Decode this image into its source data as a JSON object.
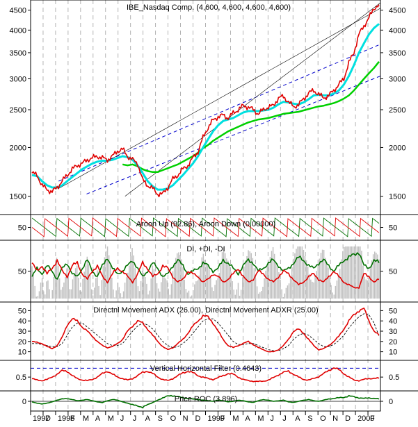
{
  "chart_data": {
    "type": "line",
    "x_axis": {
      "labels": [
        "1997",
        "D",
        "1998",
        "F",
        "M",
        "A",
        "M",
        "J",
        "J",
        "A",
        "S",
        "O",
        "N",
        "D",
        "1999",
        "F",
        "M",
        "A",
        "M",
        "J",
        "J",
        "A",
        "S",
        "O",
        "N",
        "D",
        "2000",
        "F"
      ],
      "range": [
        "1997-10",
        "2000-02"
      ],
      "grid": true
    },
    "panels": [
      {
        "id": "price",
        "title": "IBE_Nasdaq Comp. (4,600, 4,600, 4,600, 4,600)",
        "scale": "log",
        "ylim": [
          1380,
          4700
        ],
        "ticks": [
          1500,
          2000,
          2500,
          3000,
          3500,
          4000,
          4500
        ],
        "tick_labels": [
          "1500",
          "2000",
          "2500",
          "3000",
          "3500",
          "4000",
          "4500"
        ],
        "series": [
          {
            "color": "#e00000",
            "values": [
              1720,
              1700,
              1600,
              1560,
              1540,
              1580,
              1640,
              1700,
              1760,
              1800,
              1820,
              1860,
              1880,
              1900,
              1880,
              1860,
              1900,
              1960,
              1980,
              1900,
              1860,
              1820,
              1650,
              1600,
              1570,
              1520,
              1520,
              1580,
              1660,
              1700,
              1760,
              1800,
              1880,
              1950,
              2120,
              2250,
              2350,
              2400,
              2420,
              2380,
              2450,
              2500,
              2560,
              2540,
              2500,
              2440,
              2500,
              2540,
              2560,
              2680,
              2700,
              2620,
              2540,
              2580,
              2660,
              2760,
              2800,
              2740,
              2680,
              2720,
              2800,
              2900,
              3000,
              3300,
              3500,
              3900,
              4100,
              4300,
              4550,
              4650
            ]
          },
          {
            "color": "#00e0e0",
            "values": [
              1700,
              1690,
              1640,
              1600,
              1580,
              1580,
              1600,
              1640,
              1680,
              1720,
              1760,
              1790,
              1820,
              1840,
              1850,
              1850,
              1860,
              1880,
              1900,
              1890,
              1860,
              1800,
              1720,
              1640,
              1590,
              1560,
              1560,
              1570,
              1600,
              1650,
              1700,
              1760,
              1820,
              1900,
              2000,
              2100,
              2200,
              2280,
              2340,
              2360,
              2380,
              2420,
              2460,
              2480,
              2480,
              2480,
              2490,
              2500,
              2530,
              2580,
              2620,
              2610,
              2590,
              2580,
              2610,
              2660,
              2720,
              2730,
              2720,
              2720,
              2750,
              2800,
              2900,
              3050,
              3250,
              3500,
              3700,
              3900,
              4050,
              4150
            ]
          },
          {
            "color": "#00d000",
            "values": [
              null,
              null,
              null,
              null,
              null,
              null,
              null,
              null,
              null,
              null,
              null,
              null,
              null,
              null,
              null,
              null,
              null,
              null,
              1810,
              1800,
              1810,
              1790,
              1760,
              1740,
              1730,
              1730,
              1750,
              1770,
              1790,
              1810,
              1840,
              1870,
              1900,
              1940,
              1990,
              2030,
              2080,
              2120,
              2160,
              2200,
              2230,
              2260,
              2290,
              2320,
              2340,
              2360,
              2370,
              2380,
              2400,
              2420,
              2440,
              2450,
              2460,
              2470,
              2490,
              2510,
              2530,
              2550,
              2560,
              2580,
              2600,
              2630,
              2670,
              2720,
              2800,
              2900,
              3000,
              3100,
              3200,
              3320
            ]
          }
        ],
        "channel_lines": [
          {
            "color": "#0000cc",
            "style": "dashed",
            "from": [
              0.08,
              1640
            ],
            "to": [
              1.0,
              3680
            ]
          },
          {
            "color": "#0000cc",
            "style": "dashed",
            "from": [
              0.16,
              1520
            ],
            "to": [
              1.0,
              3050
            ]
          },
          {
            "color": "#000000",
            "style": "solid-thin",
            "from": [
              0.27,
              1500
            ],
            "to": [
              1.0,
              4700
            ]
          },
          {
            "color": "#000000",
            "style": "solid-thin",
            "from": [
              0.08,
              1570
            ],
            "to": [
              1.0,
              4550
            ]
          }
        ]
      },
      {
        "id": "aroon",
        "title": "Aroon Up (92.86), Aroon Down (0.00000)",
        "ylim": [
          0,
          100
        ],
        "ticks": [
          50
        ],
        "tick_labels": [
          "50"
        ],
        "series": [
          {
            "name": "Aroon Up",
            "color": "#007000",
            "period": 7,
            "phase": 0.0
          },
          {
            "name": "Aroon Down",
            "color": "#e00000",
            "period": 7,
            "phase": 3.5
          }
        ]
      },
      {
        "id": "di",
        "title": "DI, +DI, -DI",
        "ylim": [
          0,
          100
        ],
        "ticks": [
          50
        ],
        "tick_labels": [
          "50"
        ],
        "series": [
          {
            "name": "DI",
            "color": "#c0c0c0",
            "type": "histogram"
          },
          {
            "name": "+DI",
            "color": "#007000",
            "values": [
              40,
              55,
              45,
              60,
              50,
              35,
              55,
              65,
              45,
              40,
              55,
              70,
              50,
              40,
              60,
              75,
              55,
              45,
              50,
              60,
              70,
              55,
              40,
              50,
              65,
              55,
              40,
              45,
              60,
              70,
              60,
              45,
              50,
              55,
              65,
              60,
              50,
              55,
              70,
              65,
              55,
              45,
              60,
              70,
              65,
              50,
              55,
              65,
              70,
              60,
              50,
              55,
              65,
              75,
              70,
              60,
              55,
              65,
              70,
              60,
              50,
              60,
              70,
              75,
              80,
              85,
              60,
              55,
              70,
              65
            ]
          },
          {
            "name": "-DI",
            "color": "#e00000",
            "values": [
              65,
              50,
              60,
              45,
              55,
              70,
              50,
              40,
              60,
              65,
              45,
              35,
              50,
              60,
              40,
              30,
              45,
              55,
              50,
              40,
              30,
              45,
              65,
              55,
              40,
              45,
              60,
              55,
              40,
              30,
              35,
              50,
              45,
              40,
              30,
              35,
              45,
              40,
              30,
              35,
              45,
              55,
              40,
              30,
              35,
              50,
              45,
              35,
              30,
              40,
              50,
              45,
              35,
              25,
              30,
              40,
              45,
              35,
              30,
              40,
              50,
              40,
              30,
              25,
              20,
              20,
              45,
              40,
              30,
              35
            ]
          }
        ]
      },
      {
        "id": "adx",
        "title": "Directnl Movement ADX (26.00), Directnl Movement ADXR (25.00)",
        "ylim": [
          5,
          55
        ],
        "ticks": [
          10,
          20,
          30,
          40,
          50
        ],
        "tick_labels": [
          "10",
          "20",
          "30",
          "40",
          "50"
        ],
        "series": [
          {
            "name": "Directnl Movement ADX",
            "color": "#e00000",
            "values": [
              20,
              19,
              18,
              15,
              13,
              16,
              24,
              36,
              42,
              40,
              34,
              30,
              25,
              20,
              16,
              14,
              15,
              18,
              22,
              30,
              35,
              40,
              38,
              32,
              26,
              20,
              15,
              12,
              14,
              18,
              22,
              28,
              35,
              40,
              45,
              44,
              38,
              30,
              22,
              16,
              14,
              16,
              18,
              20,
              17,
              14,
              12,
              10,
              10,
              12,
              16,
              22,
              30,
              32,
              28,
              22,
              16,
              12,
              13,
              16,
              20,
              25,
              32,
              40,
              46,
              50,
              52,
              40,
              30,
              26
            ]
          },
          {
            "name": "Directnl Movement ADXR",
            "color": "#000000",
            "style": "dashed",
            "values": [
              18,
              18,
              17,
              16,
              15,
              15,
              18,
              26,
              34,
              38,
              38,
              34,
              30,
              26,
              22,
              18,
              16,
              16,
              18,
              24,
              30,
              35,
              38,
              36,
              32,
              26,
              20,
              16,
              14,
              15,
              18,
              22,
              28,
              34,
              40,
              42,
              42,
              38,
              32,
              26,
              20,
              17,
              17,
              18,
              18,
              16,
              14,
              12,
              11,
              11,
              13,
              16,
              22,
              26,
              28,
              26,
              22,
              18,
              15,
              15,
              17,
              21,
              26,
              33,
              39,
              44,
              47,
              46,
              38,
              25
            ]
          }
        ]
      },
      {
        "id": "vhf",
        "title": "Vertical Horizontal Filter (0.4643)",
        "ylim": [
          0.15,
          0.95
        ],
        "ticks": [
          0.5
        ],
        "tick_labels": [
          "0.5"
        ],
        "reference_line": 0.8,
        "series": [
          {
            "name": "Vertical Horizontal Filter",
            "color": "#e00000",
            "values": [
              0.45,
              0.4,
              0.38,
              0.42,
              0.5,
              0.6,
              0.72,
              0.7,
              0.55,
              0.45,
              0.4,
              0.38,
              0.42,
              0.5,
              0.62,
              0.7,
              0.6,
              0.5,
              0.45,
              0.4,
              0.45,
              0.55,
              0.66,
              0.7,
              0.62,
              0.5,
              0.42,
              0.38,
              0.45,
              0.55,
              0.64,
              0.7,
              0.65,
              0.55,
              0.5,
              0.45,
              0.42,
              0.48,
              0.55,
              0.62,
              0.6,
              0.5,
              0.42,
              0.38,
              0.36,
              0.35,
              0.36,
              0.4,
              0.48,
              0.58,
              0.66,
              0.7,
              0.6,
              0.5,
              0.42,
              0.4,
              0.45,
              0.52,
              0.62,
              0.72,
              0.82,
              0.75,
              0.62,
              0.5,
              0.4,
              0.38,
              0.42,
              0.45,
              0.46,
              0.46
            ]
          }
        ]
      },
      {
        "id": "roc",
        "title": "Price ROC (3.896)",
        "ylim": [
          -12,
          12
        ],
        "ticks": [
          0
        ],
        "tick_labels": [
          "0"
        ],
        "series": [
          {
            "name": "Price ROC",
            "color": "#007000",
            "values": [
              -1,
              -3,
              -5,
              -3,
              -1,
              2,
              4,
              5,
              3,
              1,
              2,
              3,
              1,
              -1,
              -2,
              1,
              3,
              2,
              -1,
              -3,
              -6,
              -8,
              -10,
              -6,
              -2,
              2,
              6,
              9,
              10,
              8,
              6,
              5,
              4,
              3,
              2,
              1,
              0,
              2,
              1,
              -1,
              0,
              2,
              1,
              -1,
              -2,
              1,
              3,
              2,
              0,
              1,
              2,
              -1,
              -2,
              0,
              2,
              3,
              1,
              0,
              2,
              4,
              5,
              6,
              7,
              9,
              8,
              6,
              5,
              6,
              5,
              4
            ]
          }
        ]
      }
    ]
  }
}
